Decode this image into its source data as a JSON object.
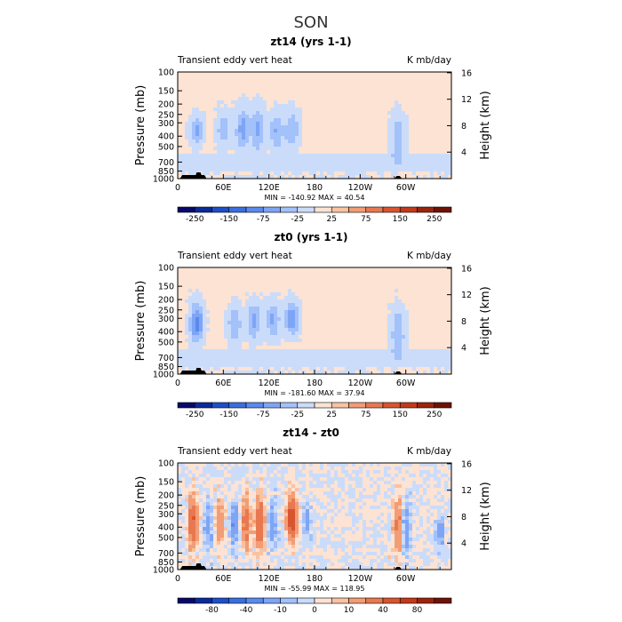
{
  "figure": {
    "title": "SON"
  },
  "chart_data": [
    {
      "type": "heatmap",
      "title": "zt14 (yrs 1-1)",
      "left_label": "Transient eddy vert heat",
      "right_label": "K mb/day",
      "xlabel": "",
      "ylabel": "Pressure (mb)",
      "ylabel_right": "Height (km)",
      "x_ticks": [
        "0",
        "60E",
        "120E",
        "180",
        "120W",
        "60W"
      ],
      "x_range_deg": [
        0,
        360
      ],
      "y_range_mb": [
        1000,
        100
      ],
      "y_ticks_mb": [
        "100",
        "150",
        "200",
        "250",
        "300",
        "400",
        "500",
        "700",
        "850",
        "1000"
      ],
      "height_ticks_km": [
        "4",
        "8",
        "12",
        "16"
      ],
      "min_max_text": "MIN = -140.92   MAX =   40.54",
      "stats": {
        "min": -140.92,
        "max": 40.54
      },
      "colorbar": {
        "ticks": [
          "-250",
          "-150",
          "-75",
          "-25",
          "25",
          "75",
          "150",
          "250"
        ],
        "levels": [
          -300,
          -250,
          -200,
          -150,
          -100,
          -75,
          -50,
          -25,
          0,
          25,
          50,
          75,
          100,
          150,
          200,
          250,
          300
        ],
        "colors": [
          "#08086b",
          "#0c2a9a",
          "#1d4fc8",
          "#3a6fe0",
          "#5a8aee",
          "#7ea5f5",
          "#a3c1fa",
          "#cbdcfa",
          "#fde3d3",
          "#f9c2a2",
          "#f29d75",
          "#e87850",
          "#d85530",
          "#c23a18",
          "#9c240c",
          "#6e1306"
        ]
      },
      "features": [
        {
          "lon": 25,
          "p_top": 250,
          "p_bot": 500,
          "value": -60
        },
        {
          "lon": 60,
          "p_top": 220,
          "p_bot": 550,
          "value": -45
        },
        {
          "lon": 85,
          "p_top": 200,
          "p_bot": 600,
          "value": -65
        },
        {
          "lon": 105,
          "p_top": 200,
          "p_bot": 600,
          "value": -60
        },
        {
          "lon": 130,
          "p_top": 220,
          "p_bot": 600,
          "value": -55
        },
        {
          "lon": 150,
          "p_top": 220,
          "p_bot": 550,
          "value": -55
        },
        {
          "lon": 290,
          "p_top": 220,
          "p_bot": 800,
          "value": -50
        }
      ]
    },
    {
      "type": "heatmap",
      "title": "zt0 (yrs 1-1)",
      "left_label": "Transient eddy vert heat",
      "right_label": "K mb/day",
      "xlabel": "",
      "ylabel": "Pressure (mb)",
      "ylabel_right": "Height (km)",
      "x_ticks": [
        "0",
        "60E",
        "120E",
        "180",
        "120W",
        "60W"
      ],
      "x_range_deg": [
        0,
        360
      ],
      "y_range_mb": [
        1000,
        100
      ],
      "y_ticks_mb": [
        "100",
        "150",
        "200",
        "250",
        "300",
        "400",
        "500",
        "700",
        "850",
        "1000"
      ],
      "height_ticks_km": [
        "4",
        "8",
        "12",
        "16"
      ],
      "min_max_text": "MIN = -181.60   MAX =   37.94",
      "stats": {
        "min": -181.6,
        "max": 37.94
      },
      "colorbar": {
        "ticks": [
          "-250",
          "-150",
          "-75",
          "-25",
          "25",
          "75",
          "150",
          "250"
        ],
        "levels": [
          -300,
          -250,
          -200,
          -150,
          -100,
          -75,
          -50,
          -25,
          0,
          25,
          50,
          75,
          100,
          150,
          200,
          250,
          300
        ],
        "colors": [
          "#08086b",
          "#0c2a9a",
          "#1d4fc8",
          "#3a6fe0",
          "#5a8aee",
          "#7ea5f5",
          "#a3c1fa",
          "#cbdcfa",
          "#fde3d3",
          "#f9c2a2",
          "#f29d75",
          "#e87850",
          "#d85530",
          "#c23a18",
          "#9c240c",
          "#6e1306"
        ]
      },
      "features": [
        {
          "lon": 25,
          "p_top": 200,
          "p_bot": 550,
          "value": -90
        },
        {
          "lon": 75,
          "p_top": 220,
          "p_bot": 550,
          "value": -55
        },
        {
          "lon": 100,
          "p_top": 200,
          "p_bot": 500,
          "value": -65
        },
        {
          "lon": 125,
          "p_top": 200,
          "p_bot": 500,
          "value": -60
        },
        {
          "lon": 150,
          "p_top": 200,
          "p_bot": 450,
          "value": -80
        },
        {
          "lon": 290,
          "p_top": 220,
          "p_bot": 800,
          "value": -55
        }
      ]
    },
    {
      "type": "heatmap",
      "title": "zt14 - zt0",
      "left_label": "Transient eddy vert heat",
      "right_label": "K mb/day",
      "xlabel": "",
      "ylabel": "Pressure (mb)",
      "ylabel_right": "Height (km)",
      "x_ticks": [
        "0",
        "60E",
        "120E",
        "180",
        "120W",
        "60W"
      ],
      "x_range_deg": [
        0,
        360
      ],
      "y_range_mb": [
        1000,
        100
      ],
      "y_ticks_mb": [
        "100",
        "150",
        "200",
        "250",
        "300",
        "400",
        "500",
        "700",
        "850",
        "1000"
      ],
      "height_ticks_km": [
        "4",
        "8",
        "12",
        "16"
      ],
      "min_max_text": "MIN = -55.99   MAX = 118.95",
      "stats": {
        "min": -55.99,
        "max": 118.95
      },
      "colorbar": {
        "ticks": [
          "-80",
          "-40",
          "-10",
          "0",
          "10",
          "40",
          "80"
        ],
        "levels": [
          -120,
          -100,
          -80,
          -60,
          -40,
          -20,
          -10,
          -5,
          0,
          5,
          10,
          20,
          40,
          60,
          80,
          100,
          120
        ],
        "colors": [
          "#08086b",
          "#0c2a9a",
          "#1d4fc8",
          "#3a6fe0",
          "#5a8aee",
          "#7ea5f5",
          "#a3c1fa",
          "#cbdcfa",
          "#fde3d3",
          "#f9c2a2",
          "#f29d75",
          "#e87850",
          "#d85530",
          "#c23a18",
          "#9c240c",
          "#6e1306"
        ]
      },
      "features": [
        {
          "lon": 20,
          "p_top": 200,
          "p_bot": 650,
          "value": 40
        },
        {
          "lon": 40,
          "p_top": 220,
          "p_bot": 700,
          "value": -15
        },
        {
          "lon": 55,
          "p_top": 200,
          "p_bot": 600,
          "value": 20
        },
        {
          "lon": 75,
          "p_top": 220,
          "p_bot": 650,
          "value": -20
        },
        {
          "lon": 90,
          "p_top": 200,
          "p_bot": 650,
          "value": 30
        },
        {
          "lon": 108,
          "p_top": 200,
          "p_bot": 650,
          "value": 40
        },
        {
          "lon": 125,
          "p_top": 220,
          "p_bot": 650,
          "value": -15
        },
        {
          "lon": 150,
          "p_top": 200,
          "p_bot": 550,
          "value": 60
        },
        {
          "lon": 170,
          "p_top": 220,
          "p_bot": 600,
          "value": -12
        },
        {
          "lon": 290,
          "p_top": 200,
          "p_bot": 800,
          "value": 25
        },
        {
          "lon": 300,
          "p_top": 220,
          "p_bot": 800,
          "value": -18
        },
        {
          "lon": 345,
          "p_top": 280,
          "p_bot": 700,
          "value": -15
        }
      ]
    }
  ]
}
